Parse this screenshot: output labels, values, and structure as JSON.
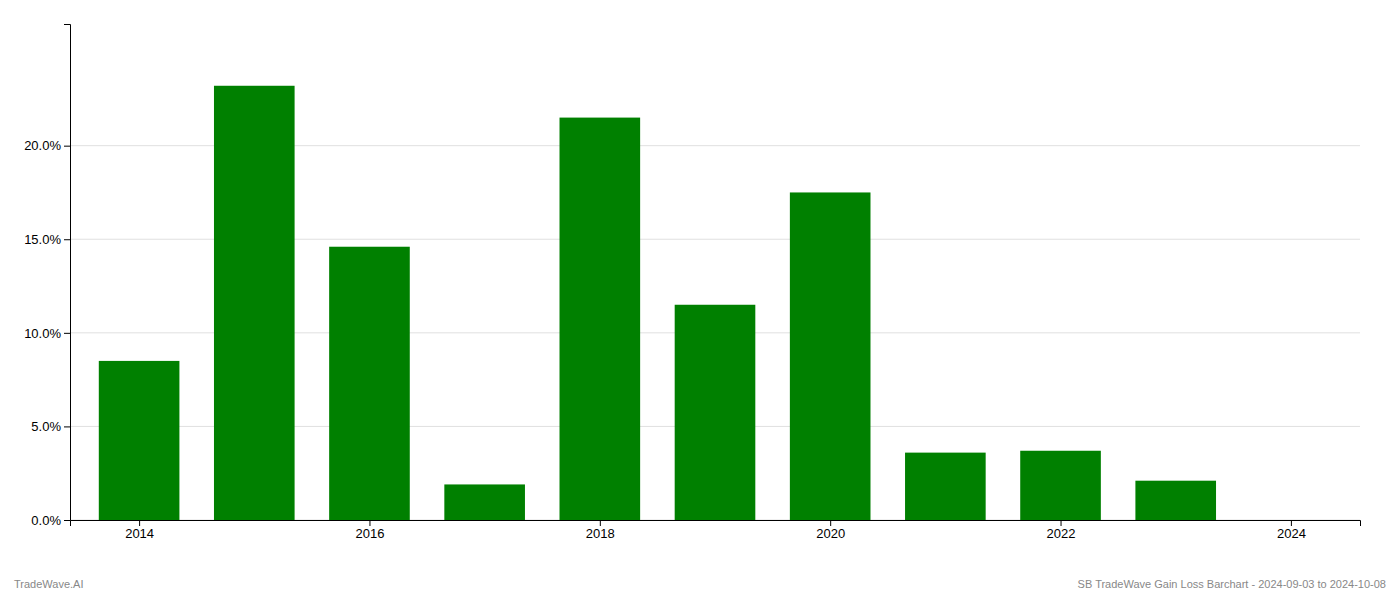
{
  "chart_data": {
    "type": "bar",
    "x": [
      2014,
      2015,
      2016,
      2017,
      2018,
      2019,
      2020,
      2021,
      2022,
      2023
    ],
    "values": [
      0.085,
      0.232,
      0.146,
      0.019,
      0.215,
      0.115,
      0.175,
      0.036,
      0.037,
      0.021
    ],
    "color": "#008000",
    "xlim": [
      2013.4,
      2024.6
    ],
    "xticks": [
      2014,
      2016,
      2018,
      2020,
      2022,
      2024
    ],
    "ylim": [
      0,
      0.265
    ],
    "yticks": [
      {
        "value": 0.0,
        "label": "0.0%"
      },
      {
        "value": 0.05,
        "label": "5.0%"
      },
      {
        "value": 0.1,
        "label": "10.0%"
      },
      {
        "value": 0.15,
        "label": "15.0%"
      },
      {
        "value": 0.2,
        "label": "20.0%"
      }
    ],
    "grid": true,
    "annotations": [
      "TradeWave.AI",
      "SB TradeWave Gain Loss Barchart - 2024-09-03 to 2024-10-08"
    ]
  }
}
